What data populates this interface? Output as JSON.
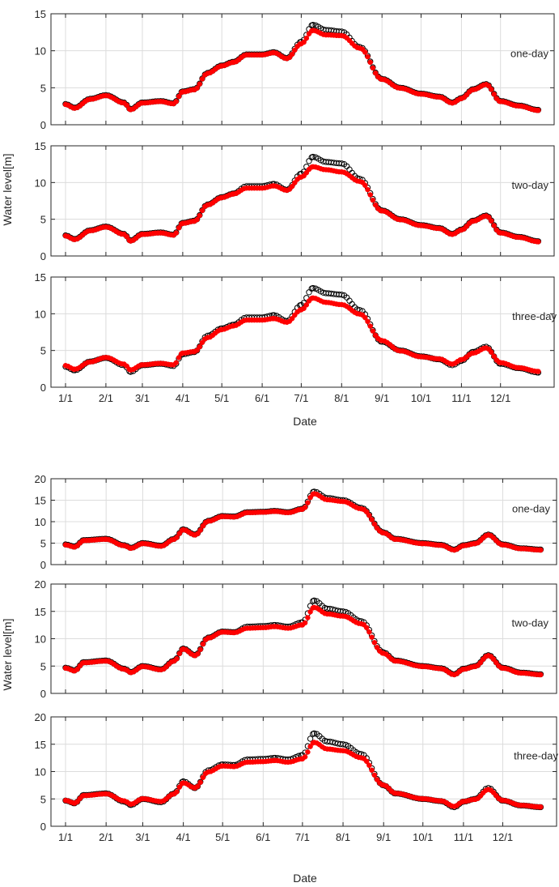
{
  "figure": {
    "ylabel": "Water level[m]",
    "xlabel": "Date",
    "month_ticks": [
      "1/1",
      "2/1",
      "3/1",
      "4/1",
      "5/1",
      "6/1",
      "7/1",
      "8/1",
      "9/1",
      "10/1",
      "11/1",
      "12/1"
    ],
    "colors": {
      "observed": "#000000",
      "forecast": "#ff0000",
      "grid": "#dcdcdc",
      "axis": "#262626"
    }
  },
  "chart_data": [
    {
      "type": "scatter",
      "group": "upper",
      "annotation": "one-day",
      "xlim": [
        "1/1",
        "12/31"
      ],
      "ylim": [
        0,
        15
      ],
      "yticks": [
        0,
        5,
        10,
        15
      ],
      "grid": true,
      "series": [
        {
          "role": "observed",
          "x": [
            "1/1",
            "1/8",
            "1/20",
            "2/1",
            "2/15",
            "2/20",
            "3/1",
            "3/15",
            "3/25",
            "4/1",
            "4/10",
            "4/20",
            "5/1",
            "5/10",
            "5/20",
            "6/1",
            "6/10",
            "6/20",
            "7/1",
            "7/10",
            "7/20",
            "8/1",
            "8/15",
            "9/1",
            "9/15",
            "10/1",
            "10/15",
            "10/25",
            "11/1",
            "11/10",
            "11/20",
            "12/1",
            "12/15",
            "12/30"
          ],
          "y": [
            2.8,
            2.3,
            3.5,
            4.0,
            3.0,
            2.1,
            3.0,
            3.2,
            2.9,
            4.5,
            4.8,
            7.0,
            8.0,
            8.5,
            9.5,
            9.5,
            9.8,
            9.0,
            11.2,
            13.5,
            12.8,
            12.6,
            10.5,
            6.2,
            5.0,
            4.2,
            3.8,
            3.0,
            3.6,
            4.8,
            5.5,
            3.2,
            2.6,
            2.0
          ]
        },
        {
          "role": "forecast",
          "x": [
            "1/1",
            "1/8",
            "1/20",
            "2/1",
            "2/15",
            "2/20",
            "3/1",
            "3/15",
            "3/25",
            "4/1",
            "4/10",
            "4/20",
            "5/1",
            "5/10",
            "5/20",
            "6/1",
            "6/10",
            "6/20",
            "7/1",
            "7/10",
            "7/20",
            "8/1",
            "8/15",
            "9/1",
            "9/15",
            "10/1",
            "10/15",
            "10/25",
            "11/1",
            "11/10",
            "11/20",
            "12/1",
            "12/15",
            "12/30"
          ],
          "y": [
            2.8,
            2.3,
            3.5,
            4.0,
            3.0,
            2.1,
            3.0,
            3.2,
            2.9,
            4.5,
            4.8,
            7.0,
            8.0,
            8.5,
            9.5,
            9.5,
            9.8,
            9.0,
            11.0,
            12.8,
            12.2,
            12.1,
            10.4,
            6.2,
            5.0,
            4.2,
            3.8,
            3.0,
            3.6,
            4.8,
            5.5,
            3.2,
            2.6,
            2.0
          ]
        }
      ]
    },
    {
      "type": "scatter",
      "group": "upper",
      "annotation": "two-day",
      "xlim": [
        "1/1",
        "12/31"
      ],
      "ylim": [
        0,
        15
      ],
      "yticks": [
        0,
        5,
        10,
        15
      ],
      "grid": true,
      "series": [
        {
          "role": "observed",
          "x": [
            "1/1",
            "1/8",
            "1/20",
            "2/1",
            "2/15",
            "2/20",
            "3/1",
            "3/15",
            "3/25",
            "4/1",
            "4/10",
            "4/20",
            "5/1",
            "5/10",
            "5/20",
            "6/1",
            "6/10",
            "6/20",
            "7/1",
            "7/10",
            "7/20",
            "8/1",
            "8/15",
            "9/1",
            "9/15",
            "10/1",
            "10/15",
            "10/25",
            "11/1",
            "11/10",
            "11/20",
            "12/1",
            "12/15",
            "12/30"
          ],
          "y": [
            2.8,
            2.3,
            3.5,
            4.0,
            3.0,
            2.1,
            3.0,
            3.2,
            2.9,
            4.5,
            4.8,
            7.0,
            8.0,
            8.5,
            9.5,
            9.5,
            9.8,
            9.0,
            11.2,
            13.5,
            12.8,
            12.6,
            10.5,
            6.2,
            5.0,
            4.2,
            3.8,
            3.0,
            3.6,
            4.8,
            5.5,
            3.2,
            2.6,
            2.0
          ]
        },
        {
          "role": "forecast",
          "x": [
            "1/1",
            "1/8",
            "1/20",
            "2/1",
            "2/15",
            "2/20",
            "3/1",
            "3/15",
            "3/25",
            "4/1",
            "4/10",
            "4/20",
            "5/1",
            "5/10",
            "5/20",
            "6/1",
            "6/10",
            "6/20",
            "7/1",
            "7/10",
            "7/20",
            "8/1",
            "8/15",
            "9/1",
            "9/15",
            "10/1",
            "10/15",
            "10/25",
            "11/1",
            "11/10",
            "11/20",
            "12/1",
            "12/15",
            "12/30"
          ],
          "y": [
            2.8,
            2.3,
            3.5,
            4.0,
            3.0,
            2.1,
            3.0,
            3.2,
            2.9,
            4.5,
            4.8,
            7.0,
            8.0,
            8.5,
            9.3,
            9.3,
            9.6,
            9.0,
            10.8,
            12.2,
            11.8,
            11.5,
            10.2,
            6.2,
            5.0,
            4.2,
            3.8,
            3.0,
            3.6,
            4.8,
            5.5,
            3.2,
            2.6,
            2.0
          ]
        }
      ]
    },
    {
      "type": "scatter",
      "group": "upper",
      "annotation": "three-day",
      "xlim": [
        "1/1",
        "12/31"
      ],
      "ylim": [
        0,
        15
      ],
      "yticks": [
        0,
        5,
        10,
        15
      ],
      "grid": true,
      "series": [
        {
          "role": "observed",
          "x": [
            "1/1",
            "1/8",
            "1/20",
            "2/1",
            "2/15",
            "2/20",
            "3/1",
            "3/15",
            "3/25",
            "4/1",
            "4/10",
            "4/20",
            "5/1",
            "5/10",
            "5/20",
            "6/1",
            "6/10",
            "6/20",
            "7/1",
            "7/10",
            "7/20",
            "8/1",
            "8/15",
            "9/1",
            "9/15",
            "10/1",
            "10/15",
            "10/25",
            "11/1",
            "11/10",
            "11/20",
            "12/1",
            "12/15",
            "12/30"
          ],
          "y": [
            2.8,
            2.3,
            3.5,
            4.0,
            3.0,
            2.1,
            3.0,
            3.2,
            2.9,
            4.5,
            4.8,
            7.0,
            8.0,
            8.5,
            9.5,
            9.5,
            9.8,
            9.0,
            11.2,
            13.5,
            12.8,
            12.6,
            10.5,
            6.2,
            5.0,
            4.2,
            3.8,
            3.0,
            3.6,
            4.8,
            5.5,
            3.2,
            2.6,
            2.0
          ]
        },
        {
          "role": "forecast",
          "x": [
            "1/1",
            "1/8",
            "1/20",
            "2/1",
            "2/15",
            "2/20",
            "3/1",
            "3/15",
            "3/25",
            "4/1",
            "4/10",
            "4/20",
            "5/1",
            "5/10",
            "5/20",
            "6/1",
            "6/10",
            "6/20",
            "7/1",
            "7/10",
            "7/20",
            "8/1",
            "8/15",
            "9/1",
            "9/15",
            "10/1",
            "10/15",
            "10/25",
            "11/1",
            "11/10",
            "11/20",
            "12/1",
            "12/15",
            "12/30"
          ],
          "y": [
            3.0,
            2.5,
            3.5,
            4.1,
            3.2,
            2.4,
            3.1,
            3.3,
            3.1,
            4.7,
            4.9,
            6.8,
            7.9,
            8.4,
            9.2,
            9.2,
            9.4,
            8.9,
            10.6,
            12.2,
            11.6,
            11.3,
            10.0,
            6.4,
            5.0,
            4.2,
            3.9,
            3.2,
            3.8,
            4.7,
            5.4,
            3.4,
            2.7,
            2.2
          ]
        }
      ]
    },
    {
      "type": "scatter",
      "group": "lower",
      "annotation": "one-day",
      "xlim": [
        "1/1",
        "12/31"
      ],
      "ylim": [
        0,
        20
      ],
      "yticks": [
        0,
        5,
        10,
        15,
        20
      ],
      "grid": true,
      "series": [
        {
          "role": "observed",
          "x": [
            "1/1",
            "1/8",
            "1/15",
            "2/1",
            "2/15",
            "2/20",
            "3/1",
            "3/15",
            "3/25",
            "4/1",
            "4/10",
            "4/20",
            "5/1",
            "5/10",
            "5/20",
            "6/1",
            "6/10",
            "6/20",
            "7/1",
            "7/10",
            "7/20",
            "8/1",
            "8/15",
            "9/1",
            "9/10",
            "10/1",
            "10/15",
            "10/25",
            "11/1",
            "11/10",
            "11/20",
            "12/1",
            "12/15",
            "12/30"
          ],
          "y": [
            4.7,
            4.2,
            5.7,
            6.0,
            4.5,
            3.9,
            5.0,
            4.4,
            6.0,
            8.2,
            7.0,
            10.2,
            11.3,
            11.2,
            12.2,
            12.3,
            12.5,
            12.2,
            13.0,
            17.0,
            15.5,
            15.0,
            13.2,
            7.5,
            6.0,
            5.0,
            4.6,
            3.5,
            4.5,
            5.0,
            7.0,
            4.7,
            3.8,
            3.5
          ]
        },
        {
          "role": "forecast",
          "x": [
            "1/1",
            "1/8",
            "1/15",
            "2/1",
            "2/15",
            "2/20",
            "3/1",
            "3/15",
            "3/25",
            "4/1",
            "4/10",
            "4/20",
            "5/1",
            "5/10",
            "5/20",
            "6/1",
            "6/10",
            "6/20",
            "7/1",
            "7/10",
            "7/20",
            "8/1",
            "8/15",
            "9/1",
            "9/10",
            "10/1",
            "10/15",
            "10/25",
            "11/1",
            "11/10",
            "11/20",
            "12/1",
            "12/15",
            "12/30"
          ],
          "y": [
            4.7,
            4.2,
            5.7,
            6.0,
            4.5,
            3.9,
            5.0,
            4.4,
            6.0,
            8.2,
            7.0,
            10.2,
            11.3,
            11.2,
            12.2,
            12.3,
            12.5,
            12.2,
            13.0,
            16.6,
            15.2,
            14.8,
            13.1,
            7.5,
            6.0,
            5.0,
            4.6,
            3.5,
            4.5,
            5.0,
            7.0,
            4.7,
            3.8,
            3.5
          ]
        }
      ]
    },
    {
      "type": "scatter",
      "group": "lower",
      "annotation": "two-day",
      "xlim": [
        "1/1",
        "12/31"
      ],
      "ylim": [
        0,
        20
      ],
      "yticks": [
        0,
        5,
        10,
        15,
        20
      ],
      "grid": true,
      "series": [
        {
          "role": "observed",
          "x": [
            "1/1",
            "1/8",
            "1/15",
            "2/1",
            "2/15",
            "2/20",
            "3/1",
            "3/15",
            "3/25",
            "4/1",
            "4/10",
            "4/20",
            "5/1",
            "5/10",
            "5/20",
            "6/1",
            "6/10",
            "6/20",
            "7/1",
            "7/10",
            "7/20",
            "8/1",
            "8/15",
            "9/1",
            "9/10",
            "10/1",
            "10/15",
            "10/25",
            "11/1",
            "11/10",
            "11/20",
            "12/1",
            "12/15",
            "12/30"
          ],
          "y": [
            4.7,
            4.2,
            5.7,
            6.0,
            4.5,
            3.9,
            5.0,
            4.4,
            6.0,
            8.2,
            7.0,
            10.2,
            11.3,
            11.2,
            12.2,
            12.3,
            12.5,
            12.2,
            13.0,
            17.0,
            15.5,
            15.0,
            13.2,
            7.5,
            6.0,
            5.0,
            4.6,
            3.5,
            4.5,
            5.0,
            7.0,
            4.7,
            3.8,
            3.5
          ]
        },
        {
          "role": "forecast",
          "x": [
            "1/1",
            "1/8",
            "1/15",
            "2/1",
            "2/15",
            "2/20",
            "3/1",
            "3/15",
            "3/25",
            "4/1",
            "4/10",
            "4/20",
            "5/1",
            "5/10",
            "5/20",
            "6/1",
            "6/10",
            "6/20",
            "7/1",
            "7/10",
            "7/20",
            "8/1",
            "8/15",
            "9/1",
            "9/10",
            "10/1",
            "10/15",
            "10/25",
            "11/1",
            "11/10",
            "11/20",
            "12/1",
            "12/15",
            "12/30"
          ],
          "y": [
            4.7,
            4.2,
            5.7,
            6.0,
            4.5,
            3.9,
            5.0,
            4.4,
            6.0,
            8.2,
            7.0,
            10.2,
            11.3,
            11.2,
            12.0,
            12.1,
            12.3,
            12.0,
            12.6,
            15.8,
            14.6,
            14.2,
            12.8,
            7.4,
            6.0,
            5.0,
            4.6,
            3.5,
            4.5,
            5.0,
            7.0,
            4.7,
            3.8,
            3.5
          ]
        }
      ]
    },
    {
      "type": "scatter",
      "group": "lower",
      "annotation": "three-day",
      "xlim": [
        "1/1",
        "12/31"
      ],
      "ylim": [
        0,
        20
      ],
      "yticks": [
        0,
        5,
        10,
        15,
        20
      ],
      "grid": true,
      "series": [
        {
          "role": "observed",
          "x": [
            "1/1",
            "1/8",
            "1/15",
            "2/1",
            "2/15",
            "2/20",
            "3/1",
            "3/15",
            "3/25",
            "4/1",
            "4/10",
            "4/20",
            "5/1",
            "5/10",
            "5/20",
            "6/1",
            "6/10",
            "6/20",
            "7/1",
            "7/10",
            "7/20",
            "8/1",
            "8/15",
            "9/1",
            "9/10",
            "10/1",
            "10/15",
            "10/25",
            "11/1",
            "11/10",
            "11/20",
            "12/1",
            "12/15",
            "12/30"
          ],
          "y": [
            4.7,
            4.2,
            5.7,
            6.0,
            4.5,
            3.9,
            5.0,
            4.4,
            6.0,
            8.2,
            7.0,
            10.2,
            11.3,
            11.2,
            12.2,
            12.3,
            12.5,
            12.2,
            13.0,
            17.0,
            15.5,
            15.0,
            13.2,
            7.5,
            6.0,
            5.0,
            4.6,
            3.5,
            4.5,
            5.0,
            7.0,
            4.7,
            3.8,
            3.5
          ]
        },
        {
          "role": "forecast",
          "x": [
            "1/1",
            "1/8",
            "1/15",
            "2/1",
            "2/15",
            "2/20",
            "3/1",
            "3/15",
            "3/25",
            "4/1",
            "4/10",
            "4/20",
            "5/1",
            "5/10",
            "5/20",
            "6/1",
            "6/10",
            "6/20",
            "7/1",
            "7/10",
            "7/20",
            "8/1",
            "8/15",
            "9/1",
            "9/10",
            "10/1",
            "10/15",
            "10/25",
            "11/1",
            "11/10",
            "11/20",
            "12/1",
            "12/15",
            "12/30"
          ],
          "y": [
            4.8,
            4.3,
            5.7,
            6.0,
            4.7,
            4.1,
            5.1,
            4.6,
            6.0,
            8.0,
            7.1,
            10.0,
            11.1,
            11.0,
            11.8,
            11.9,
            12.1,
            11.8,
            12.4,
            15.4,
            14.2,
            13.9,
            12.6,
            7.6,
            6.1,
            5.1,
            4.7,
            3.7,
            4.6,
            5.0,
            6.8,
            4.8,
            3.9,
            3.6
          ]
        }
      ]
    }
  ]
}
